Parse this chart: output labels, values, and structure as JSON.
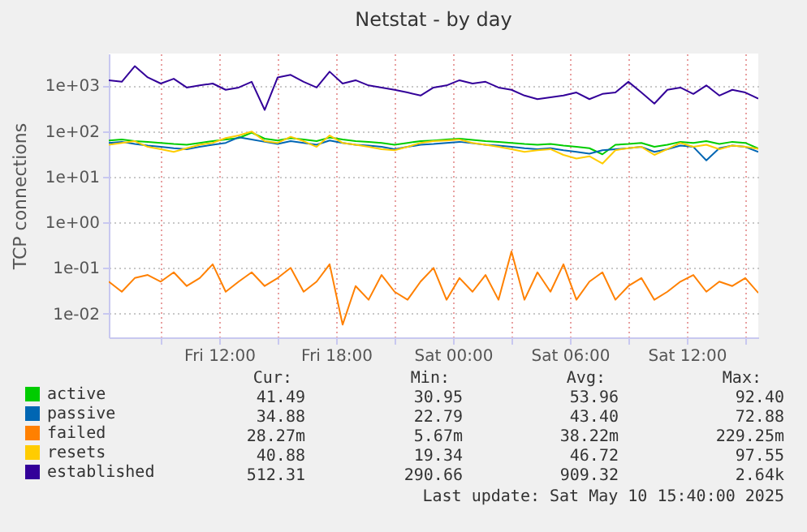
{
  "chart_data": {
    "type": "line",
    "title": "Netstat - by day",
    "ylabel": "TCP connections",
    "log": "y",
    "grid": true,
    "legend": "bottom",
    "marker": "none",
    "line_style": "solid",
    "x": [
      "2025-05-09T06:20",
      "2025-05-09T07:00",
      "2025-05-09T07:40",
      "2025-05-09T08:20",
      "2025-05-09T09:00",
      "2025-05-09T09:40",
      "2025-05-09T10:20",
      "2025-05-09T11:00",
      "2025-05-09T11:40",
      "2025-05-09T12:20",
      "2025-05-09T13:00",
      "2025-05-09T13:40",
      "2025-05-09T14:20",
      "2025-05-09T15:00",
      "2025-05-09T15:40",
      "2025-05-09T16:20",
      "2025-05-09T17:00",
      "2025-05-09T17:40",
      "2025-05-09T18:20",
      "2025-05-09T19:00",
      "2025-05-09T19:40",
      "2025-05-09T20:20",
      "2025-05-09T21:00",
      "2025-05-09T21:40",
      "2025-05-09T22:20",
      "2025-05-09T23:00",
      "2025-05-09T23:40",
      "2025-05-10T00:20",
      "2025-05-10T01:00",
      "2025-05-10T01:40",
      "2025-05-10T02:20",
      "2025-05-10T03:00",
      "2025-05-10T03:40",
      "2025-05-10T04:20",
      "2025-05-10T05:00",
      "2025-05-10T05:40",
      "2025-05-10T06:20",
      "2025-05-10T07:00",
      "2025-05-10T07:40",
      "2025-05-10T08:20",
      "2025-05-10T09:00",
      "2025-05-10T09:40",
      "2025-05-10T10:20",
      "2025-05-10T11:00",
      "2025-05-10T11:40",
      "2025-05-10T12:20",
      "2025-05-10T13:00",
      "2025-05-10T13:40",
      "2025-05-10T14:20",
      "2025-05-10T15:00",
      "2025-05-10T15:40"
    ],
    "series": [
      {
        "name": "active",
        "color": "#00cc00",
        "values": [
          62,
          65,
          60,
          58,
          55,
          52,
          50,
          55,
          60,
          65,
          70,
          92.4,
          68,
          62,
          70,
          65,
          60,
          72,
          65,
          60,
          58,
          55,
          50,
          55,
          60,
          62,
          65,
          68,
          64,
          60,
          58,
          55,
          52,
          50,
          52,
          48,
          45,
          42,
          30.95,
          50,
          52,
          55,
          45,
          50,
          58,
          55,
          60,
          52,
          58,
          55,
          41.49
        ]
      },
      {
        "name": "passive",
        "color": "#0066b3",
        "values": [
          55,
          58,
          52,
          48,
          45,
          42,
          40,
          45,
          50,
          55,
          72.88,
          65,
          58,
          52,
          60,
          55,
          50,
          62,
          55,
          50,
          48,
          45,
          40,
          45,
          50,
          52,
          55,
          58,
          54,
          50,
          48,
          45,
          42,
          40,
          42,
          38,
          35,
          32,
          38,
          40,
          42,
          45,
          35,
          40,
          48,
          45,
          22.79,
          42,
          48,
          45,
          34.88
        ]
      },
      {
        "name": "failed",
        "color": "#ff8000",
        "values": [
          0.05,
          0.03,
          0.06,
          0.07,
          0.05,
          0.08,
          0.04,
          0.06,
          0.12,
          0.03,
          0.05,
          0.08,
          0.04,
          0.06,
          0.1,
          0.03,
          0.05,
          0.12,
          0.0057,
          0.04,
          0.02,
          0.07,
          0.03,
          0.02,
          0.05,
          0.1,
          0.02,
          0.06,
          0.03,
          0.07,
          0.02,
          0.229,
          0.02,
          0.08,
          0.03,
          0.12,
          0.02,
          0.05,
          0.08,
          0.02,
          0.04,
          0.06,
          0.02,
          0.03,
          0.05,
          0.07,
          0.03,
          0.05,
          0.04,
          0.06,
          0.02827
        ]
      },
      {
        "name": "resets",
        "color": "#ffcc00",
        "values": [
          50,
          55,
          60,
          45,
          40,
          35,
          42,
          50,
          55,
          70,
          80,
          97.55,
          60,
          55,
          75,
          60,
          45,
          80,
          55,
          50,
          45,
          40,
          38,
          45,
          55,
          60,
          62,
          65,
          55,
          50,
          45,
          40,
          35,
          38,
          40,
          30,
          25,
          28,
          19.34,
          38,
          42,
          45,
          30,
          40,
          55,
          45,
          50,
          40,
          48,
          45,
          40.88
        ]
      },
      {
        "name": "established",
        "color": "#330099",
        "values": [
          1300,
          1200,
          2640,
          1500,
          1100,
          1400,
          900,
          1000,
          1100,
          800,
          900,
          1200,
          290.66,
          1500,
          1700,
          1200,
          900,
          2000,
          1100,
          1300,
          1000,
          900,
          800,
          700,
          600,
          900,
          1000,
          1300,
          1100,
          1200,
          900,
          800,
          600,
          500,
          550,
          600,
          700,
          500,
          650,
          700,
          1200,
          700,
          400,
          800,
          900,
          650,
          1000,
          600,
          800,
          700,
          512.31
        ]
      }
    ],
    "xlim": [
      "2025-05-09T06:20",
      "2025-05-10T15:40"
    ],
    "xticks": [
      {
        "value": "2025-05-09T09:00",
        "label": null
      },
      {
        "value": "2025-05-09T12:00",
        "label": "Fri 12:00"
      },
      {
        "value": "2025-05-09T15:00",
        "label": null
      },
      {
        "value": "2025-05-09T18:00",
        "label": "Fri 18:00"
      },
      {
        "value": "2025-05-09T21:00",
        "label": null
      },
      {
        "value": "2025-05-10T00:00",
        "label": "Sat 00:00"
      },
      {
        "value": "2025-05-10T03:00",
        "label": null
      },
      {
        "value": "2025-05-10T06:00",
        "label": "Sat 06:00"
      },
      {
        "value": "2025-05-10T09:00",
        "label": null
      },
      {
        "value": "2025-05-10T12:00",
        "label": "Sat 12:00"
      },
      {
        "value": "2025-05-10T15:00",
        "label": null
      }
    ],
    "ylim": [
      0.003,
      5000
    ],
    "yticks": [
      {
        "value": 0.01,
        "label": "1e-02"
      },
      {
        "value": 0.1,
        "label": "1e-01"
      },
      {
        "value": 1,
        "label": "1e+00"
      },
      {
        "value": 10,
        "label": "1e+01"
      },
      {
        "value": 100,
        "label": "1e+02"
      },
      {
        "value": 1000,
        "label": "1e+03"
      }
    ],
    "annotations": [
      "Cur:",
      "Min:",
      "Avg:",
      "Max:",
      "41.49",
      "30.95",
      "53.96",
      "92.40",
      "34.88",
      "22.79",
      "43.40",
      "72.88",
      "28.27m",
      "5.67m",
      "38.22m",
      "229.25m",
      "40.88",
      "19.34",
      "46.72",
      "97.55",
      "512.31",
      "290.66",
      "909.32",
      "2.64k",
      "Last update:  Sat May 10 15:40:00 2025"
    ]
  }
}
